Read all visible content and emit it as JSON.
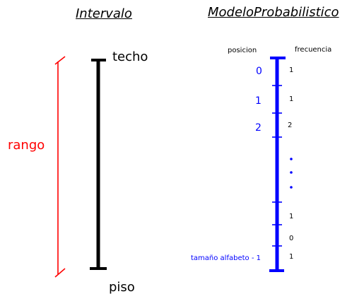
{
  "titles": {
    "left": "Intervalo",
    "right": "ModeloProbabilistico"
  },
  "interval": {
    "top_label": "techo",
    "bottom_label": "piso",
    "range_label": "rango"
  },
  "model": {
    "header_position": "posicion",
    "header_frequency": "frecuencia",
    "positions": [
      "0",
      "1",
      "2"
    ],
    "last_position": "tamaño alfabeto - 1",
    "frequencies_top": [
      "1",
      "1",
      "2"
    ],
    "frequencies_bottom": [
      "1",
      "0",
      "1"
    ],
    "ellipsis_count": 3
  },
  "colors": {
    "interval_bar": "#000000",
    "range_arrow": "#ff0000",
    "model_bar": "#0000ff"
  }
}
